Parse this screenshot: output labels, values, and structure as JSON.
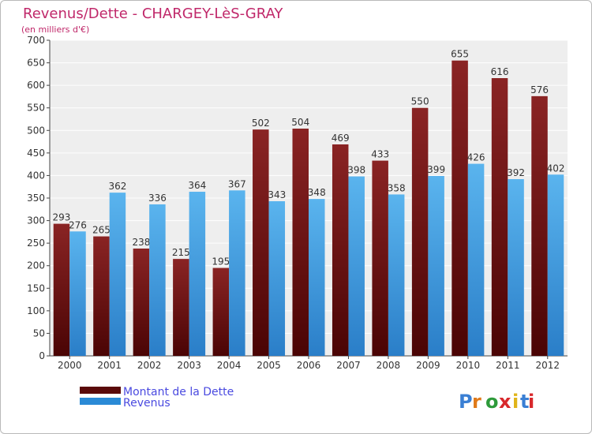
{
  "chart_data": {
    "type": "bar",
    "title": "Revenus/Dette - CHARGEY-LèS-GRAY",
    "subtitle": "(en milliers d'€)",
    "categories": [
      "2000",
      "2001",
      "2002",
      "2003",
      "2004",
      "2005",
      "2006",
      "2007",
      "2008",
      "2009",
      "2010",
      "2011",
      "2012"
    ],
    "series": [
      {
        "name": "Montant de la Dette",
        "color": "#7a1010",
        "values": [
          293,
          265,
          238,
          215,
          195,
          502,
          504,
          469,
          433,
          550,
          655,
          616,
          576
        ]
      },
      {
        "name": "Revenus",
        "color": "#3b9be0",
        "values": [
          276,
          362,
          336,
          364,
          367,
          343,
          348,
          398,
          358,
          399,
          426,
          392,
          402
        ]
      }
    ],
    "ylim": [
      0,
      700
    ],
    "yticks": [
      0,
      50,
      100,
      150,
      200,
      250,
      300,
      350,
      400,
      450,
      500,
      550,
      600,
      650,
      700
    ],
    "grid": true,
    "legend_position": "bottom-left",
    "xlabel": "",
    "ylabel": ""
  },
  "brand": {
    "text": "Proxiti"
  },
  "colors": {
    "title": "#c0286a",
    "legend_text": "#4a4ae0",
    "plot_bg": "#eeeeee",
    "grid": "#ffffff"
  }
}
